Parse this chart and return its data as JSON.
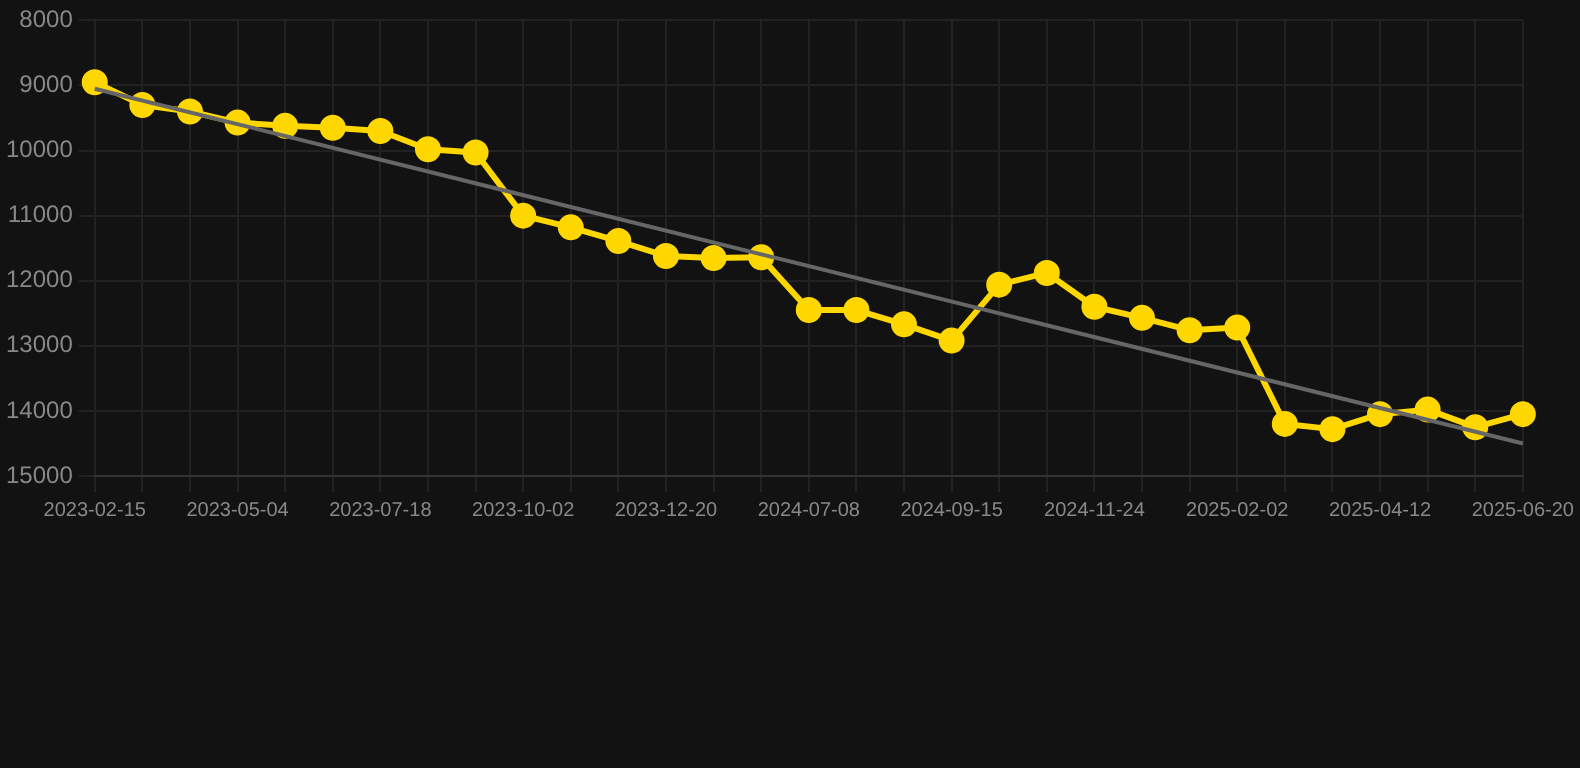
{
  "chart_data": {
    "type": "line",
    "categories": [
      "2023-02-15",
      null,
      null,
      "2023-05-04",
      null,
      null,
      "2023-07-18",
      null,
      null,
      "2023-10-02",
      null,
      null,
      "2023-12-20",
      null,
      null,
      "2024-07-08",
      null,
      null,
      "2024-09-15",
      null,
      null,
      "2024-11-24",
      null,
      null,
      "2025-02-02",
      null,
      null,
      "2025-04-12",
      null,
      null,
      "2025-06-20"
    ],
    "series": [
      {
        "color": "#ffd700",
        "marker": "circle",
        "values": [
          8950,
          9300,
          9400,
          9570,
          9620,
          9650,
          9700,
          9980,
          10030,
          11000,
          11180,
          11390,
          11620,
          11650,
          11640,
          12450,
          12450,
          12670,
          12920,
          12060,
          11880,
          12400,
          12570,
          12760,
          12720,
          14200,
          14280,
          14050,
          13980,
          14250,
          14050
        ]
      },
      {
        "type": "line",
        "color": "#666666",
        "marker": "none",
        "values": [
          9050,
          null,
          null,
          null,
          null,
          null,
          null,
          null,
          null,
          null,
          null,
          null,
          null,
          null,
          null,
          null,
          null,
          null,
          null,
          null,
          null,
          null,
          null,
          null,
          null,
          null,
          null,
          null,
          null,
          null,
          14500
        ]
      }
    ],
    "ylim": [
      15000,
      8000
    ],
    "yticks": [
      8000,
      9000,
      10000,
      11000,
      12000,
      13000,
      14000,
      15000
    ],
    "grid": true,
    "legend": false
  }
}
